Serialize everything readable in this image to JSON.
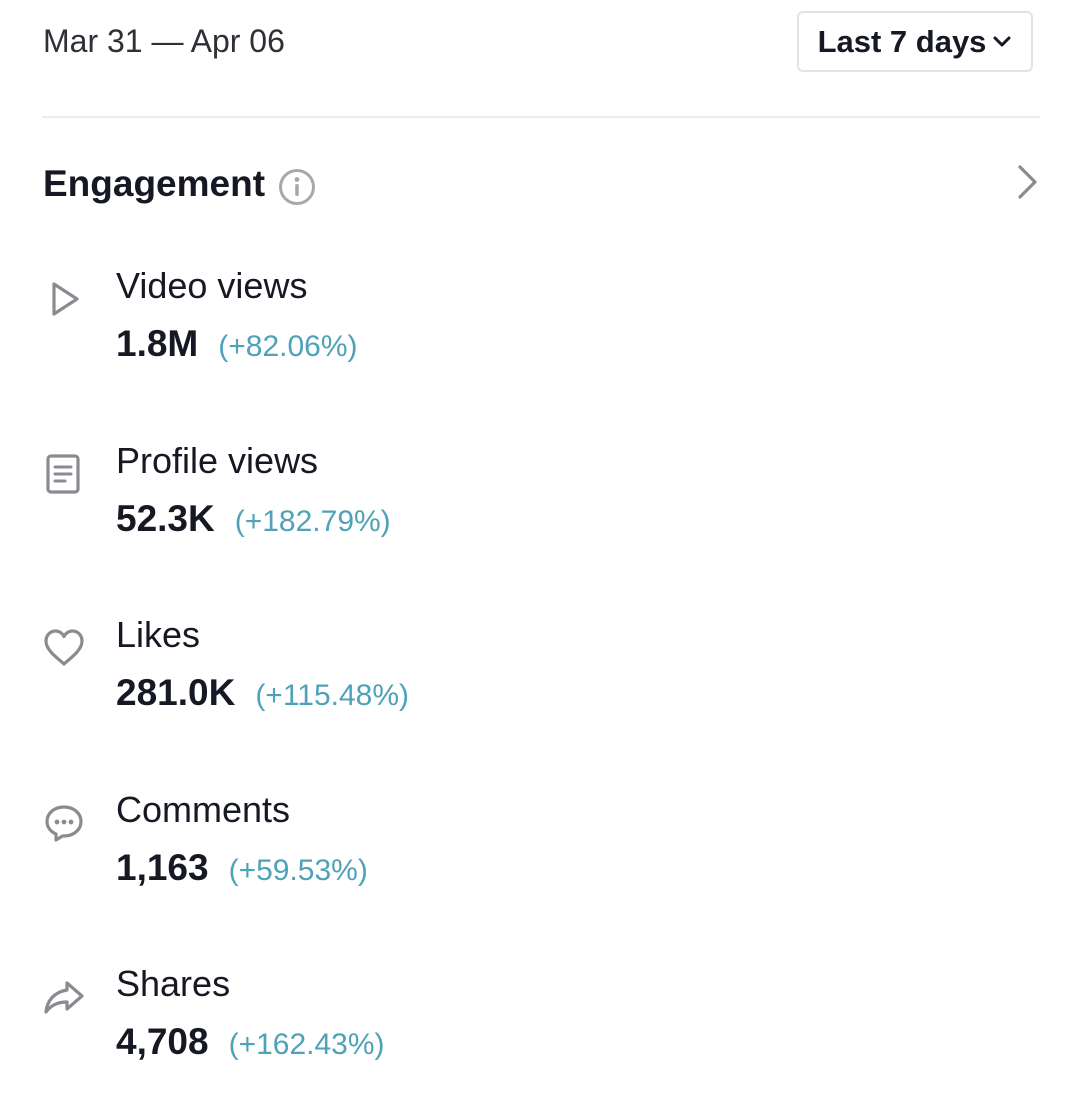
{
  "header": {
    "date_range": "Mar 31 — Apr 06",
    "range_selector": {
      "selected": "Last 7 days",
      "icon": "chevron-down-icon"
    }
  },
  "engagement": {
    "title": "Engagement",
    "info_icon": "info-icon",
    "more_icon": "chevron-right-icon",
    "metrics": [
      {
        "label": "Video views",
        "value": "1.8M",
        "change": "(+82.06%)",
        "icon": "play-icon"
      },
      {
        "label": "Profile views",
        "value": "52.3K",
        "change": "(+182.79%)",
        "icon": "profile-document-icon"
      },
      {
        "label": "Likes",
        "value": "281.0K",
        "change": "(+115.48%)",
        "icon": "heart-icon"
      },
      {
        "label": "Comments",
        "value": "1,163",
        "change": "(+59.53%)",
        "icon": "comment-bubble-icon"
      },
      {
        "label": "Shares",
        "value": "4,708",
        "change": "(+162.43%)",
        "icon": "share-arrow-icon"
      }
    ]
  },
  "colors": {
    "text_primary": "#161823",
    "change_positive": "#4fa2b8",
    "icon_gray": "#8a8b91",
    "divider": "#ececee"
  }
}
